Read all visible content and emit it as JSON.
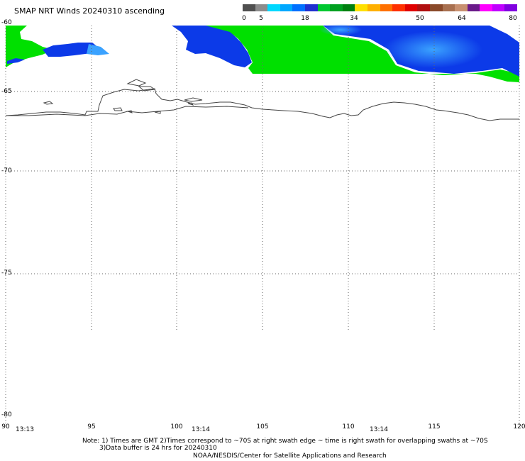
{
  "title": "SMAP NRT Winds 20240310 ascending",
  "color_scale": {
    "colors": [
      "#505050",
      "#8c8c8c",
      "#00d8ff",
      "#00a8ff",
      "#0070ff",
      "#2030d0",
      "#00c830",
      "#00a020",
      "#008010",
      "#ffe000",
      "#ffb000",
      "#ff7000",
      "#ff3000",
      "#e00000",
      "#b01010",
      "#8a4a2a",
      "#a87050",
      "#c89070",
      "#6a1a8a",
      "#ff00ff",
      "#c000ff",
      "#8000e0"
    ],
    "labels": [
      "0",
      "5",
      "18",
      "34",
      "50",
      "64",
      "80"
    ]
  },
  "map": {
    "lat_labels": [
      "-60",
      "-65",
      "-70",
      "-75",
      "-80"
    ],
    "lon_labels": [
      "90",
      "95",
      "100",
      "105",
      "110",
      "115",
      "120"
    ],
    "swath_times": [
      "13:13",
      "13:14",
      "13:14"
    ],
    "colors": {
      "green": "#00e000",
      "blue": "#0c3ae8",
      "lightblue": "#3aa2ff",
      "coast": "#444444",
      "grid": "#666666"
    }
  },
  "footer": {
    "note1": "Note: 1) Times are GMT 2)Times correspond to ~70S at right swath edge ~ time is right swath for overlapping swaths at ~70S",
    "note2": "3)Data buffer is 24 hrs for 20240310",
    "credit": "NOAA/NESDIS/Center for Satellite Applications and Research"
  }
}
